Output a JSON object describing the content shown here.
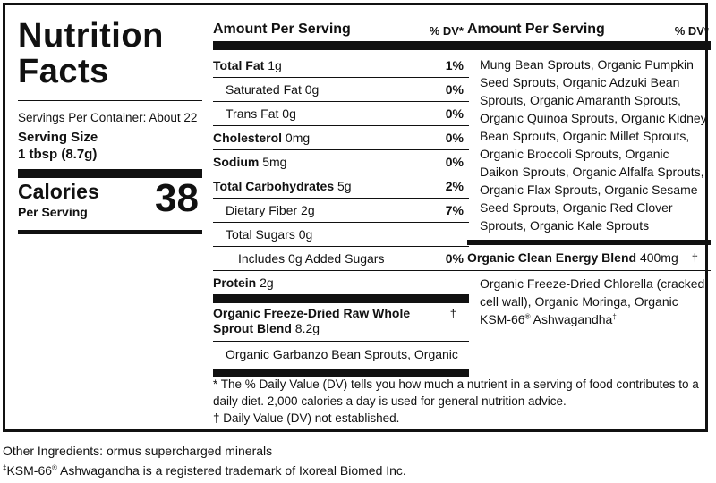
{
  "title": [
    "Nutrition",
    "Facts"
  ],
  "servings_per_container": "Servings Per Container: About 22",
  "serving_size_label": "Serving Size",
  "serving_size_value": "1 tbsp (8.7g)",
  "calories": {
    "label": "Calories",
    "sublabel": "Per Serving",
    "value": "38"
  },
  "header": {
    "amount": "Amount Per Serving",
    "dv": "% DV*"
  },
  "nutrients": [
    {
      "name": "Total Fat",
      "amount": "1g",
      "dv": "1%",
      "bold": true,
      "indent": 0
    },
    {
      "name": "Saturated Fat",
      "amount": "0g",
      "dv": "0%",
      "bold": false,
      "indent": 1
    },
    {
      "name": "Trans Fat",
      "amount": "0g",
      "dv": "0%",
      "bold": false,
      "indent": 1
    },
    {
      "name": "Cholesterol",
      "amount": "0mg",
      "dv": "0%",
      "bold": true,
      "indent": 0
    },
    {
      "name": "Sodium",
      "amount": "5mg",
      "dv": "0%",
      "bold": true,
      "indent": 0
    },
    {
      "name": "Total Carbohydrates",
      "amount": "5g",
      "dv": "2%",
      "bold": true,
      "indent": 0
    },
    {
      "name": "Dietary Fiber",
      "amount": "2g",
      "dv": "7%",
      "bold": false,
      "indent": 1
    },
    {
      "name": "Total Sugars",
      "amount": "0g",
      "dv": "",
      "bold": false,
      "indent": 1
    },
    {
      "name": "Includes",
      "amount": "0g Added Sugars",
      "dv": "0%",
      "bold": false,
      "indent": 2
    }
  ],
  "protein": {
    "name": "Protein",
    "amount": "2g"
  },
  "blend1": {
    "name": "Organic Freeze-Dried Raw Whole Sprout Blend",
    "amount": "8.2g",
    "dagger": "†",
    "ingredients_col2": "Organic Garbanzo Bean Sprouts, Organic",
    "ingredients_col3": "Mung Bean Sprouts, Organic Pumpkin Seed Sprouts, Organic Adzuki Bean Sprouts, Organic Amaranth Sprouts, Organic Quinoa Sprouts, Organic Kidney Bean Sprouts, Organic Millet Sprouts, Organic Broccoli Sprouts, Organic Daikon Sprouts, Organic Alfalfa Sprouts, Organic Flax Sprouts, Organic Sesame Seed Sprouts, Organic Red Clover Sprouts, Organic Kale Sprouts"
  },
  "blend2": {
    "name": "Organic Clean Energy Blend",
    "amount": "400mg",
    "dagger": "†",
    "ingredients": "Organic Freeze-Dried Chlorella (cracked cell wall), Organic Moringa, Organic KSM-66",
    "ingredients_tail": " Ashwagandha",
    "reg": "®",
    "dd": "‡"
  },
  "footnotes": [
    "* The % Daily Value (DV) tells you how much a nutrient in a serving of food contributes to a daily diet. 2,000 calories a day is used for general nutrition advice.",
    "† Daily Value (DV) not established."
  ],
  "other_ingredients": "Other Ingredients: ormus supercharged minerals",
  "trademark": {
    "dd": "‡",
    "prefix": "KSM-66",
    "reg": "®",
    "text": " Ashwagandha is a registered trademark of Ixoreal Biomed Inc."
  }
}
